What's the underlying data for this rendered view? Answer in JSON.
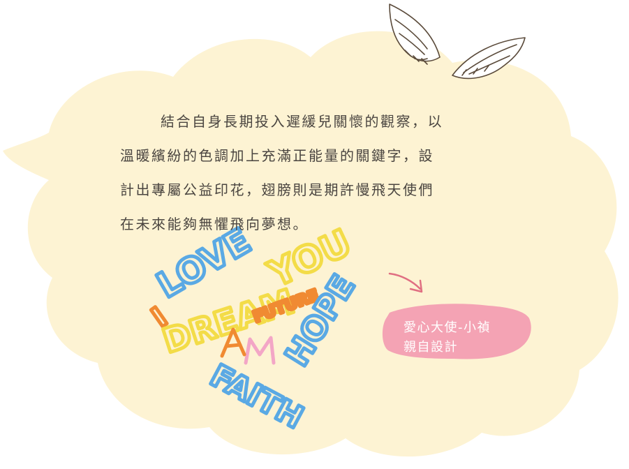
{
  "description_text": {
    "lines": [
      "結合自身長期投入遲緩兒關懷的觀察，以",
      "溫暖繽紛的色調加上充滿正能量的關鍵字，設",
      "計出專屬公益印花，翅膀則是期許慢飛天使們",
      "在未來能夠無懼飛向夢想。"
    ]
  },
  "artwork": {
    "words": [
      "I",
      "LOVE",
      "YOU",
      "DREAM",
      "FUTURE",
      "HOPE",
      "FAITH"
    ]
  },
  "designer_badge": {
    "line1": "愛心大使-小禎",
    "line2": "親自設計",
    "color": "#f4a3b4"
  },
  "colors": {
    "cloud_fill": "#fdf3d3",
    "text": "#4a4540",
    "outline": "#5a4a3a",
    "yellow": "#f3dc48",
    "orange": "#f08a32",
    "blue": "#5aa9e4",
    "pink": "#f3a6c6"
  },
  "icons": [
    "wings-icon",
    "arrow-icon"
  ]
}
